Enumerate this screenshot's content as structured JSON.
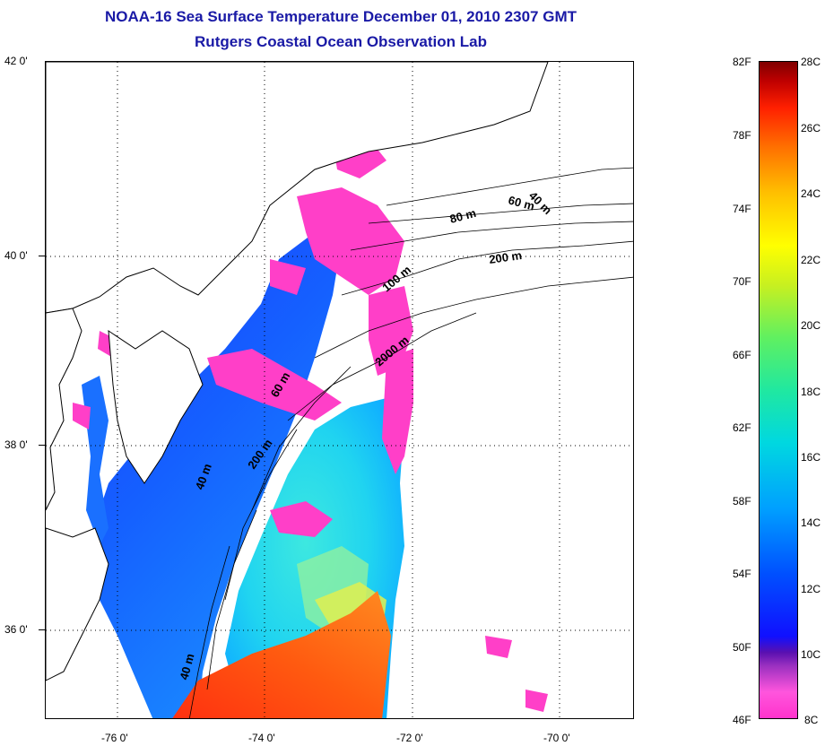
{
  "title_line1": "NOAA-16 Sea Surface Temperature December 01, 2010 2307 GMT",
  "title_line2": "Rutgers Coastal Ocean Observation Lab",
  "map": {
    "lat_labels": [
      "42 0'",
      "40 0'",
      "38 0'",
      "36 0'"
    ],
    "lon_labels": [
      "-76 0'",
      "-74 0'",
      "-72 0'",
      "-70 0'"
    ],
    "depth_labels": {
      "d40_north": "40 m",
      "d60_north": "60 m",
      "d80": "80 m",
      "d200_north": "200 m",
      "d100": "100 m",
      "d2000": "2000 m",
      "d60_mid": "60 m",
      "d200_mid": "200 m",
      "d40_mid": "40 m",
      "d40_south": "40 m"
    },
    "colors": {
      "land": "#ffffff",
      "cloud": "#ff3fc8",
      "coastline": "#000000",
      "grid": "#000000"
    }
  },
  "colorbar": {
    "fahrenheit": [
      "82F",
      "78F",
      "74F",
      "70F",
      "66F",
      "62F",
      "58F",
      "54F",
      "50F",
      "46F"
    ],
    "celsius": [
      "28C",
      "26C",
      "24C",
      "22C",
      "20C",
      "18C",
      "16C",
      "14C",
      "12C",
      "10C",
      "8C"
    ],
    "range_c": [
      8,
      28
    ],
    "range_f": [
      46,
      82
    ]
  }
}
